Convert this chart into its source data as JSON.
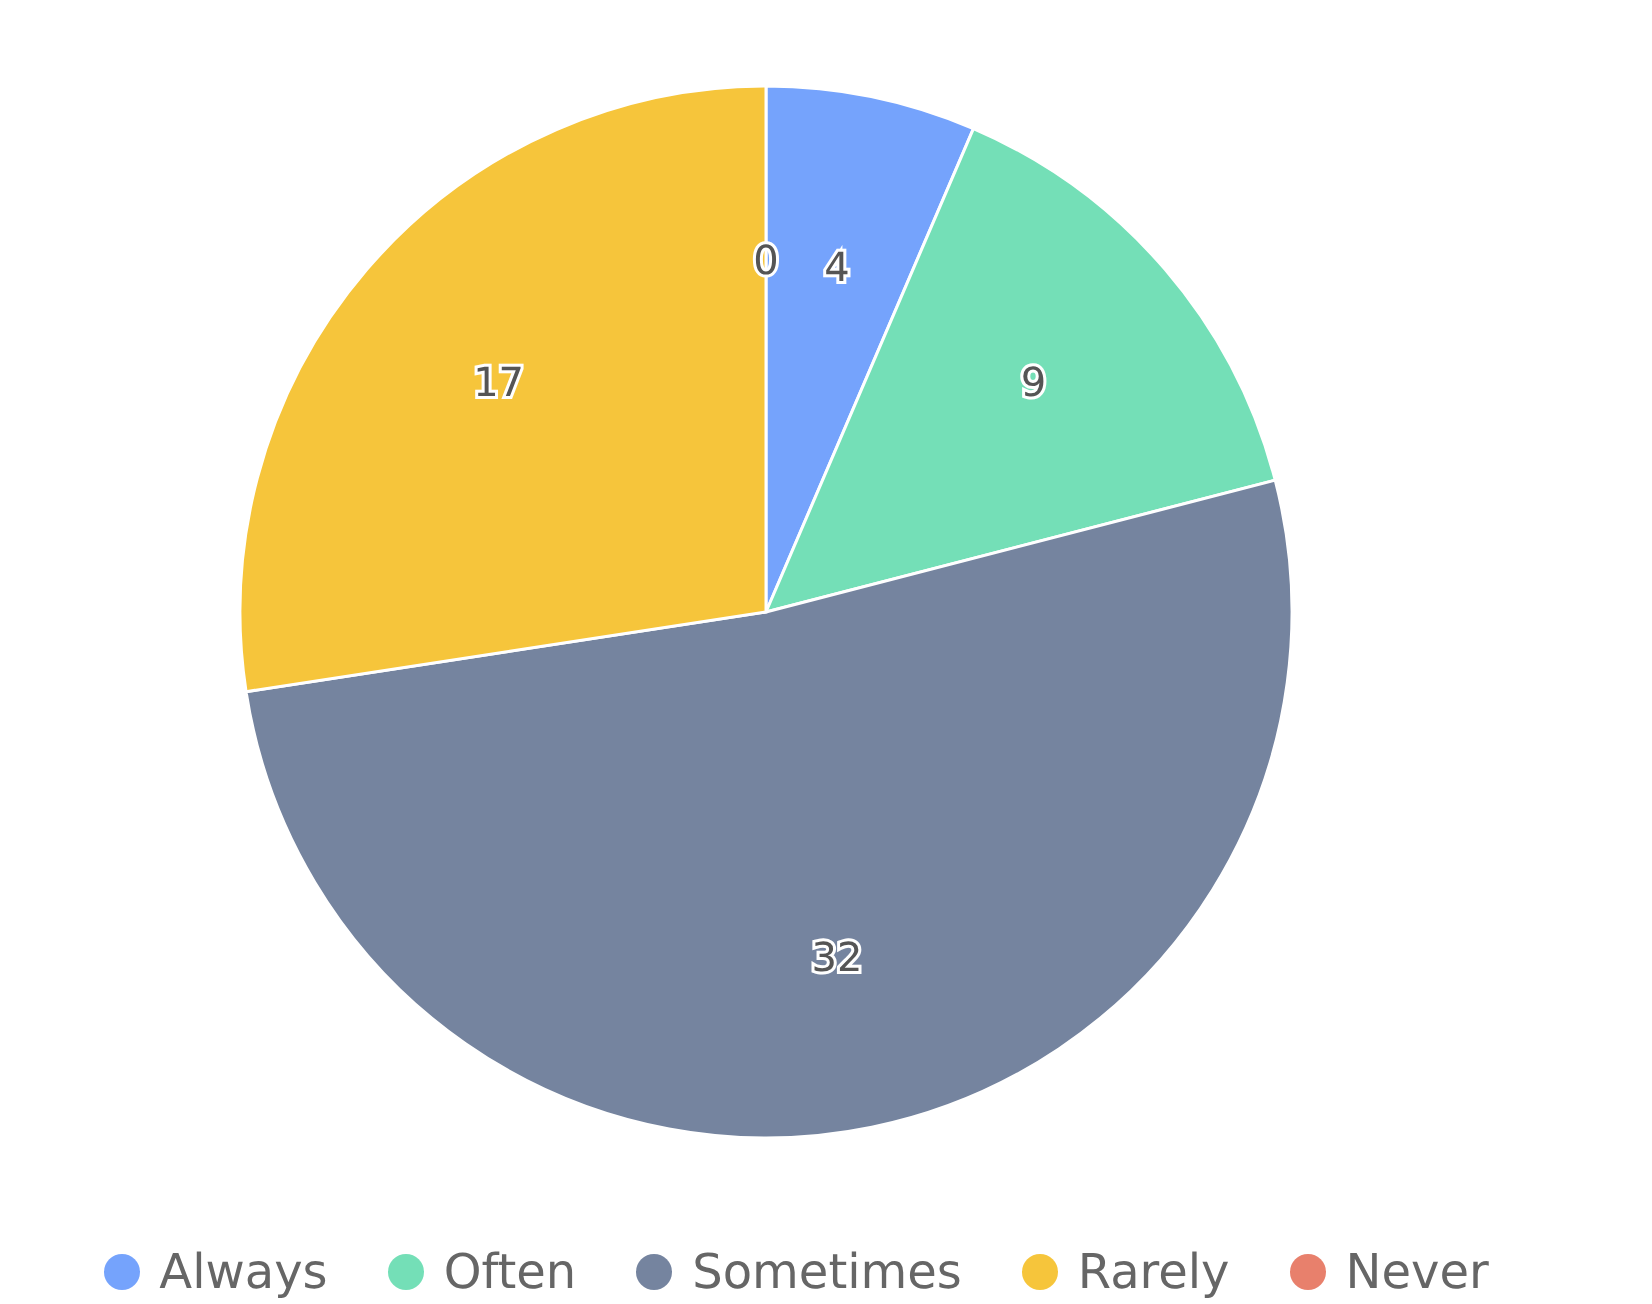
{
  "chart_data": {
    "type": "pie",
    "categories": [
      "Always",
      "Often",
      "Sometimes",
      "Rarely",
      "Never"
    ],
    "values": [
      4,
      9,
      32,
      17,
      0
    ],
    "colors": [
      "#75a3fc",
      "#74dfb7",
      "#75849f",
      "#f6c53b",
      "#e8806c"
    ],
    "value_labels": [
      "4",
      "9",
      "32",
      "17",
      "0"
    ],
    "legend": "bottom"
  }
}
